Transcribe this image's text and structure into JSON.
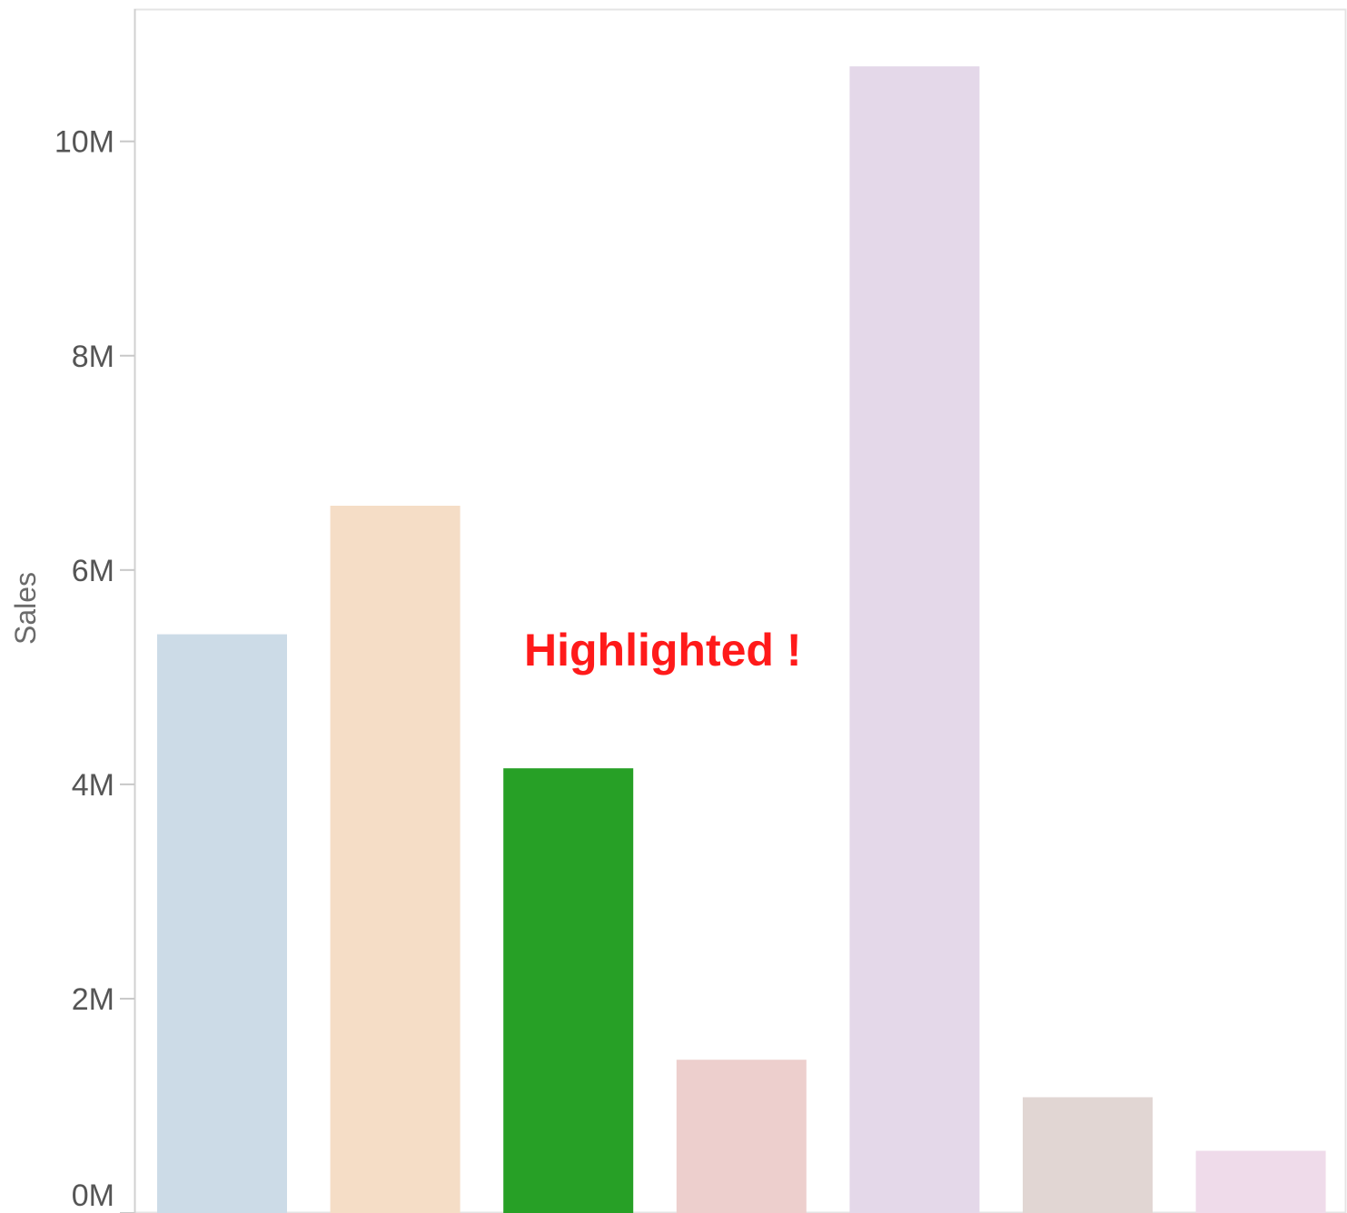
{
  "chart_data": {
    "type": "bar",
    "title": "",
    "xlabel": "",
    "ylabel": "Sales",
    "ylim": [
      0,
      11200000
    ],
    "yticks": [
      0,
      2000000,
      4000000,
      6000000,
      8000000,
      10000000
    ],
    "ytick_labels": [
      "0M",
      "2M",
      "4M",
      "6M",
      "8M",
      "10M"
    ],
    "values": [
      5400000,
      6600000,
      4150000,
      1430000,
      10700000,
      1080000,
      580000
    ],
    "colors": [
      "#ccdbe7",
      "#f5ddc6",
      "#27a026",
      "#edcfcd",
      "#e4d8e9",
      "#e1d6d3",
      "#efdbea"
    ],
    "highlighted_index": 2,
    "grid": false,
    "annotation": {
      "text": "Highlighted !",
      "color": "#ff1a1a"
    }
  }
}
